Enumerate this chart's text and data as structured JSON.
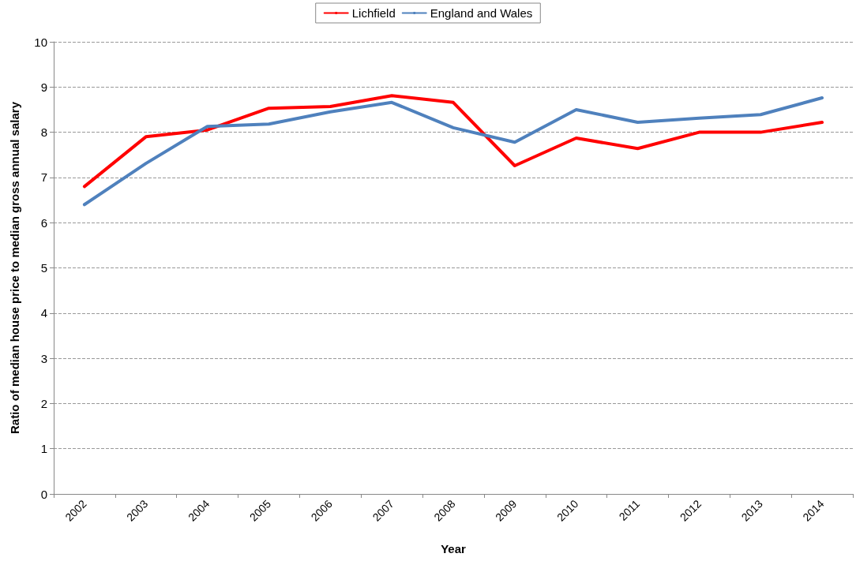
{
  "chart_data": {
    "type": "line",
    "xlabel": "Year",
    "ylabel": "Ratio of median house price to median gross annual salary",
    "categories": [
      "2002",
      "2003",
      "2004",
      "2005",
      "2006",
      "2007",
      "2008",
      "2009",
      "2010",
      "2011",
      "2012",
      "2013",
      "2014"
    ],
    "series": [
      {
        "name": "Lichfield",
        "color": "#ff0000",
        "values": [
          6.8,
          7.9,
          8.05,
          8.53,
          8.57,
          8.81,
          8.66,
          7.26,
          7.87,
          7.64,
          8.0,
          8.0,
          8.22
        ]
      },
      {
        "name": "England and Wales",
        "color": "#4f81bd",
        "values": [
          6.4,
          7.31,
          8.13,
          8.18,
          8.45,
          8.66,
          8.1,
          7.78,
          8.5,
          8.22,
          8.31,
          8.39,
          8.76
        ]
      }
    ],
    "ylim": [
      0,
      10
    ],
    "yticks": [
      0,
      1,
      2,
      3,
      4,
      5,
      6,
      7,
      8,
      9,
      10
    ],
    "grid": "y",
    "legend": "top",
    "marker": "none",
    "line_style": "solid"
  }
}
